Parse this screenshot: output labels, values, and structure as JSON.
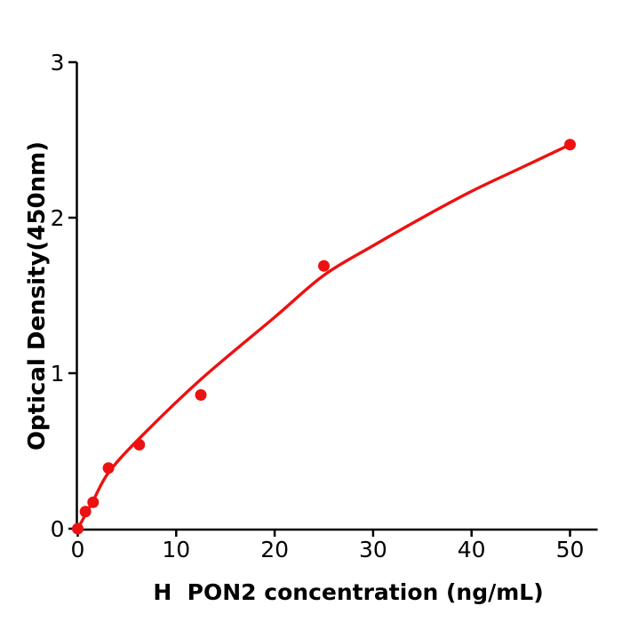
{
  "chart_data": {
    "type": "scatter",
    "title": "",
    "xlabel": "H  PON2 concentration (ng/mL)",
    "ylabel": "Optical Density(450nm)",
    "xlim": [
      0,
      52.8
    ],
    "ylim": [
      0,
      3
    ],
    "x_ticks": [
      0,
      10,
      20,
      30,
      40,
      50
    ],
    "y_ticks": [
      0,
      1,
      2,
      3
    ],
    "grid": false,
    "legend": "none",
    "axis_color": "#000000",
    "accent_color": "#ed1111",
    "series": [
      {
        "name": "standard-points",
        "type": "scatter",
        "color": "#ed1111",
        "points": [
          [
            0,
            0.0
          ],
          [
            0.78,
            0.11
          ],
          [
            1.56,
            0.17
          ],
          [
            3.12,
            0.39
          ],
          [
            6.25,
            0.54
          ],
          [
            12.5,
            0.86
          ],
          [
            25,
            1.69
          ],
          [
            50,
            2.47
          ]
        ]
      },
      {
        "name": "fitted-curve",
        "type": "line",
        "color": "#ed1111",
        "points": [
          [
            0,
            0.0
          ],
          [
            1.56,
            0.18
          ],
          [
            3.12,
            0.36
          ],
          [
            6.25,
            0.58
          ],
          [
            12.5,
            0.96
          ],
          [
            20,
            1.36
          ],
          [
            25,
            1.63
          ],
          [
            30,
            1.82
          ],
          [
            35,
            2.0
          ],
          [
            40,
            2.17
          ],
          [
            45,
            2.32
          ],
          [
            50,
            2.47
          ]
        ]
      }
    ]
  }
}
